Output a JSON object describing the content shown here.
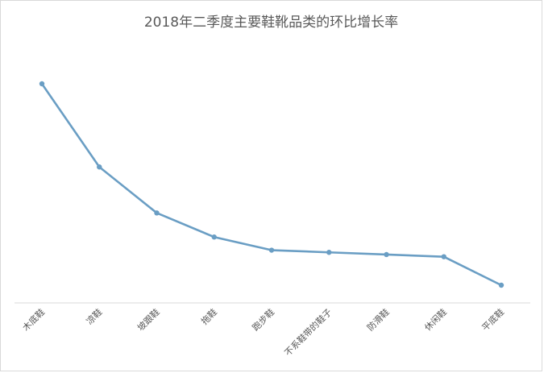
{
  "chart_data": {
    "type": "line",
    "title": "2018年二季度主要鞋靴品类的环比增长率",
    "xlabel": "",
    "ylabel": "",
    "categories": [
      "木底鞋",
      "凉鞋",
      "坡跟鞋",
      "拖鞋",
      "跑步鞋",
      "不系鞋带的鞋子",
      "防滑鞋",
      "休闲鞋",
      "平底鞋"
    ],
    "series": [
      {
        "values": [
          100,
          62,
          41,
          30,
          24,
          23,
          22,
          21,
          8
        ]
      }
    ],
    "ylim": [
      -5,
      105
    ],
    "grid": false,
    "legend": "none",
    "colors": {
      "line": "#6a9ec4",
      "axis": "#d9d9d9",
      "label": "#595959"
    }
  }
}
